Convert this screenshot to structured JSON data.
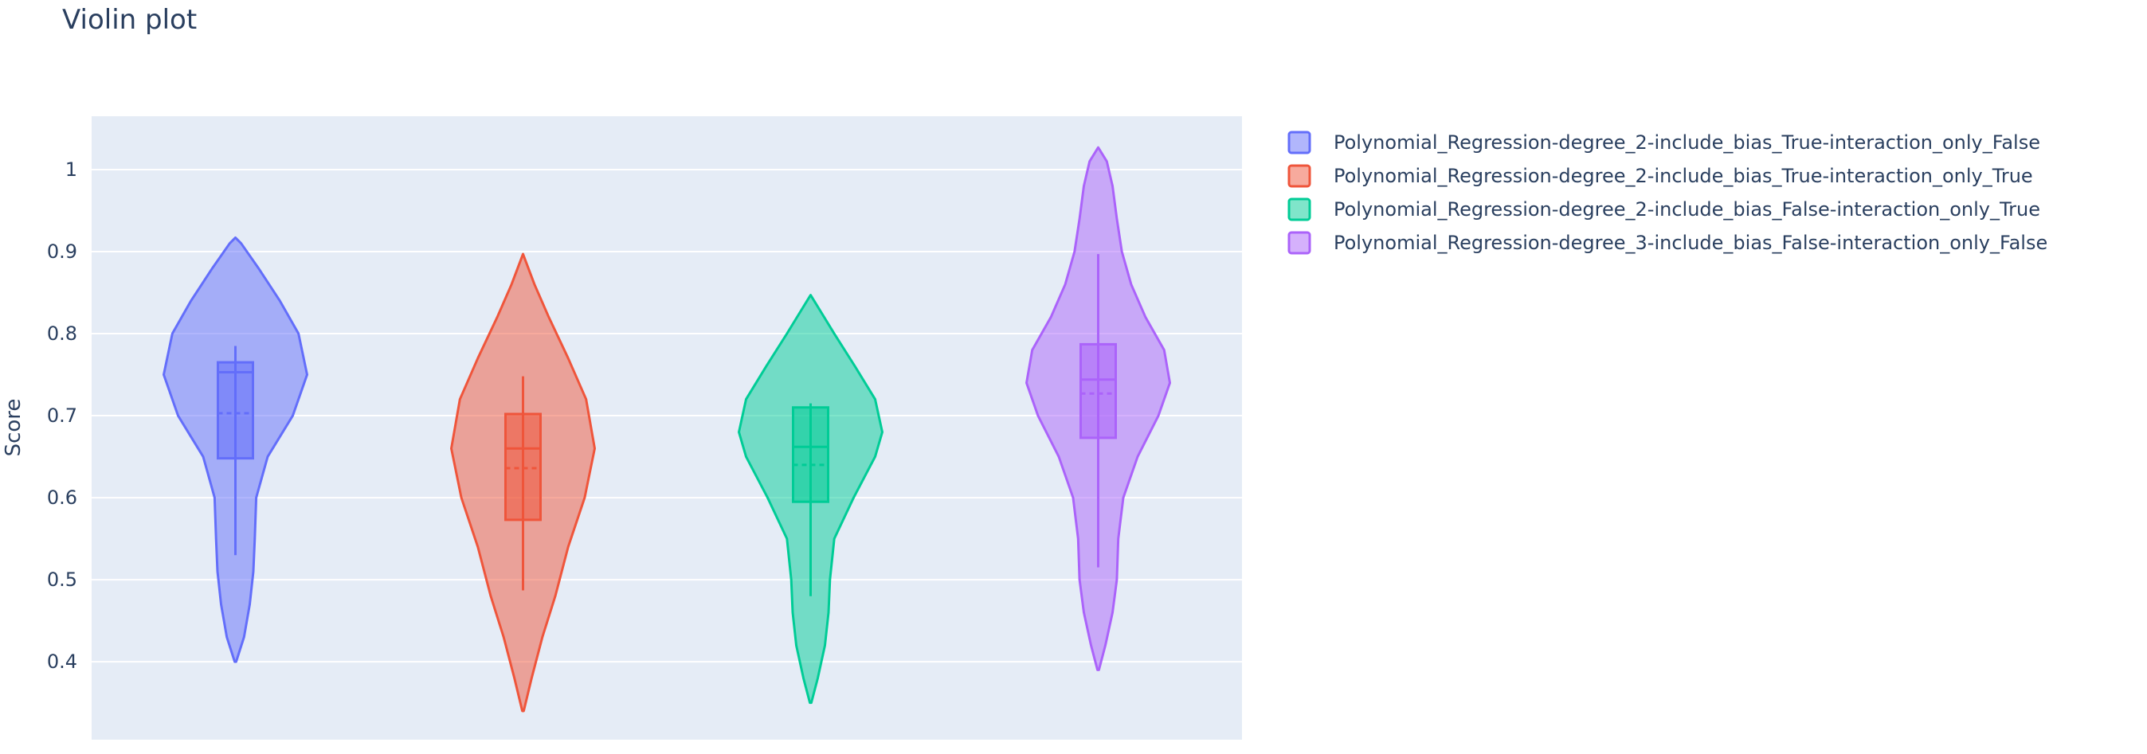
{
  "chart_data": {
    "type": "violin",
    "title": "Violin plot",
    "xlabel": "",
    "ylabel": "Score",
    "ylim": [
      0.305,
      1.065
    ],
    "yticks": [
      0.4,
      0.5,
      0.6,
      0.7,
      0.8,
      0.9,
      1
    ],
    "yticklabels": [
      "0.4",
      "0.5",
      "0.6",
      "0.7",
      "0.8",
      "0.9",
      "1"
    ],
    "grid": true,
    "legend_position": "top-right",
    "series": [
      {
        "name": "Polynomial_Regression-degree_2-include_bias_True-interaction_only_False",
        "color": "#636efa",
        "kde_min": 0.4,
        "kde_max": 0.917,
        "q1": 0.648,
        "median": 0.753,
        "q3": 0.765,
        "mean": 0.703,
        "whisker_low": 0.53,
        "whisker_high": 0.785,
        "density_profile": [
          [
            0.4,
            0.01
          ],
          [
            0.43,
            0.12
          ],
          [
            0.47,
            0.2
          ],
          [
            0.51,
            0.25
          ],
          [
            0.55,
            0.27
          ],
          [
            0.6,
            0.29
          ],
          [
            0.65,
            0.45
          ],
          [
            0.7,
            0.8
          ],
          [
            0.75,
            1.0
          ],
          [
            0.8,
            0.88
          ],
          [
            0.84,
            0.62
          ],
          [
            0.88,
            0.32
          ],
          [
            0.91,
            0.08
          ],
          [
            0.917,
            0.0
          ]
        ]
      },
      {
        "name": "Polynomial_Regression-degree_2-include_bias_True-interaction_only_True",
        "color": "#ef553b",
        "kde_min": 0.34,
        "kde_max": 0.897,
        "q1": 0.573,
        "median": 0.66,
        "q3": 0.702,
        "mean": 0.636,
        "whisker_low": 0.487,
        "whisker_high": 0.748,
        "density_profile": [
          [
            0.34,
            0.01
          ],
          [
            0.38,
            0.12
          ],
          [
            0.43,
            0.27
          ],
          [
            0.48,
            0.45
          ],
          [
            0.54,
            0.63
          ],
          [
            0.6,
            0.86
          ],
          [
            0.66,
            1.0
          ],
          [
            0.72,
            0.88
          ],
          [
            0.77,
            0.63
          ],
          [
            0.82,
            0.36
          ],
          [
            0.86,
            0.16
          ],
          [
            0.897,
            0.0
          ]
        ]
      },
      {
        "name": "Polynomial_Regression-degree_2-include_bias_False-interaction_only_True",
        "color": "#00cc96",
        "kde_min": 0.35,
        "kde_max": 0.847,
        "q1": 0.595,
        "median": 0.662,
        "q3": 0.71,
        "mean": 0.64,
        "whisker_low": 0.48,
        "whisker_high": 0.715,
        "density_profile": [
          [
            0.35,
            0.01
          ],
          [
            0.38,
            0.1
          ],
          [
            0.42,
            0.2
          ],
          [
            0.46,
            0.25
          ],
          [
            0.5,
            0.27
          ],
          [
            0.55,
            0.33
          ],
          [
            0.6,
            0.6
          ],
          [
            0.65,
            0.9
          ],
          [
            0.68,
            1.0
          ],
          [
            0.72,
            0.9
          ],
          [
            0.76,
            0.62
          ],
          [
            0.8,
            0.33
          ],
          [
            0.83,
            0.12
          ],
          [
            0.847,
            0.0
          ]
        ]
      },
      {
        "name": "Polynomial_Regression-degree_3-include_bias_False-interaction_only_False",
        "color": "#ab63fa",
        "kde_min": 0.39,
        "kde_max": 1.027,
        "q1": 0.673,
        "median": 0.744,
        "q3": 0.787,
        "mean": 0.727,
        "whisker_low": 0.515,
        "whisker_high": 0.897,
        "density_profile": [
          [
            0.39,
            0.01
          ],
          [
            0.42,
            0.1
          ],
          [
            0.46,
            0.2
          ],
          [
            0.5,
            0.26
          ],
          [
            0.55,
            0.28
          ],
          [
            0.6,
            0.35
          ],
          [
            0.65,
            0.55
          ],
          [
            0.7,
            0.84
          ],
          [
            0.74,
            1.0
          ],
          [
            0.78,
            0.92
          ],
          [
            0.82,
            0.66
          ],
          [
            0.86,
            0.46
          ],
          [
            0.9,
            0.33
          ],
          [
            0.94,
            0.26
          ],
          [
            0.98,
            0.2
          ],
          [
            1.01,
            0.12
          ],
          [
            1.027,
            0.0
          ]
        ]
      }
    ]
  }
}
